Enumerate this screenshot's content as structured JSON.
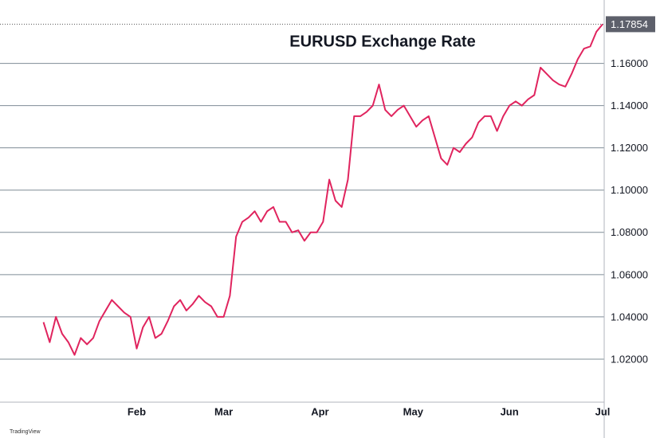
{
  "chart_data": {
    "type": "line",
    "title": "EURUSD Exchange Rate",
    "watermark": "TradingView",
    "x": [
      2,
      4,
      6,
      8,
      10,
      12,
      14,
      16,
      18,
      20,
      22,
      24,
      26,
      28,
      30,
      32,
      34,
      36,
      38,
      40,
      42,
      44,
      46,
      48,
      50,
      52,
      54,
      56,
      58,
      60,
      62,
      64,
      66,
      68,
      70,
      72,
      74,
      76,
      78,
      80,
      82,
      84,
      86,
      88,
      90,
      92,
      94,
      96,
      98,
      100,
      102,
      104,
      106,
      108,
      110,
      112,
      114,
      116,
      118,
      120,
      122,
      124,
      126,
      128,
      130,
      132,
      134,
      136,
      138,
      140,
      142,
      144,
      146,
      148,
      150,
      152,
      154,
      156,
      158,
      160,
      162,
      164,
      166,
      168,
      170,
      172,
      174,
      176,
      178,
      180,
      182
    ],
    "series": [
      {
        "name": "EURUSD",
        "color": "#e0245e",
        "values": [
          1.0375,
          1.028,
          1.04,
          1.032,
          1.028,
          1.022,
          1.03,
          1.027,
          1.03,
          1.038,
          1.043,
          1.048,
          1.045,
          1.042,
          1.04,
          1.025,
          1.035,
          1.04,
          1.03,
          1.032,
          1.038,
          1.045,
          1.048,
          1.043,
          1.046,
          1.05,
          1.047,
          1.045,
          1.04,
          1.04,
          1.05,
          1.078,
          1.085,
          1.087,
          1.09,
          1.085,
          1.09,
          1.092,
          1.085,
          1.085,
          1.08,
          1.081,
          1.076,
          1.08,
          1.08,
          1.085,
          1.105,
          1.095,
          1.092,
          1.105,
          1.135,
          1.135,
          1.137,
          1.14,
          1.15,
          1.138,
          1.135,
          1.138,
          1.14,
          1.135,
          1.13,
          1.133,
          1.135,
          1.125,
          1.115,
          1.112,
          1.12,
          1.118,
          1.122,
          1.125,
          1.132,
          1.135,
          1.135,
          1.128,
          1.135,
          1.14,
          1.142,
          1.14,
          1.143,
          1.145,
          1.158,
          1.155,
          1.152,
          1.15,
          1.149,
          1.155,
          1.162,
          1.167,
          1.168,
          1.175,
          1.17854
        ]
      }
    ],
    "xlim": [
      -12,
      182.5
    ],
    "xticks": [
      {
        "value": 32,
        "label": "Feb"
      },
      {
        "value": 60,
        "label": "Mar"
      },
      {
        "value": 91,
        "label": "Apr"
      },
      {
        "value": 121,
        "label": "May"
      },
      {
        "value": 152,
        "label": "Jun"
      },
      {
        "value": 182,
        "label": "Jul"
      }
    ],
    "ylim": [
      1.0,
      1.19
    ],
    "yticks": [
      {
        "value": 1.02,
        "label": "1.02000"
      },
      {
        "value": 1.04,
        "label": "1.04000"
      },
      {
        "value": 1.06,
        "label": "1.06000"
      },
      {
        "value": 1.08,
        "label": "1.08000"
      },
      {
        "value": 1.1,
        "label": "1.10000"
      },
      {
        "value": 1.12,
        "label": "1.12000"
      },
      {
        "value": 1.14,
        "label": "1.14000"
      },
      {
        "value": 1.16,
        "label": "1.16000"
      }
    ],
    "grid": true
  }
}
